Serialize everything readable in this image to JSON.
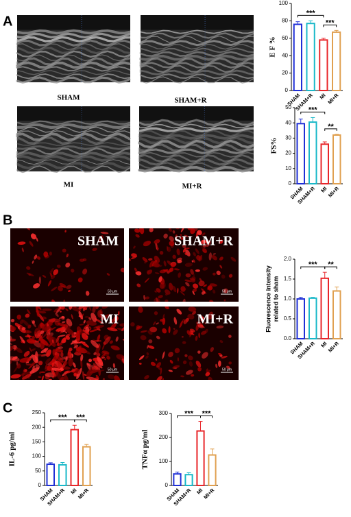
{
  "panel_labels": [
    "A",
    "B",
    "C"
  ],
  "panel_a": {
    "images": [
      {
        "label": "SHAM"
      },
      {
        "label": "SHAM+R"
      },
      {
        "label": "MI"
      },
      {
        "label": "MI+R"
      }
    ]
  },
  "panel_b": {
    "images": [
      {
        "label": "SHAM",
        "scale_bar": "50 μm"
      },
      {
        "label": "SHAM+R",
        "scale_bar": "50 μm"
      },
      {
        "label": "MI",
        "scale_bar": "50 μm"
      },
      {
        "label": "MI+R",
        "scale_bar": "50 μm"
      }
    ]
  },
  "chart_data": [
    {
      "type": "bar",
      "ylabel": [
        "E F %"
      ],
      "categories": [
        "SHAM",
        "SHAM+R",
        "MI",
        "MI+R"
      ],
      "colors": [
        "#1f2fd6",
        "#19b8c8",
        "#e8262a",
        "#e0a050"
      ],
      "values": [
        76,
        77,
        58,
        67
      ],
      "errors": [
        3,
        3,
        2,
        2
      ],
      "ylim": [
        0,
        100
      ],
      "yticks": [
        0,
        20,
        40,
        60,
        80,
        100
      ],
      "annotations": [
        {
          "label": "***",
          "between": [
            "SHAM",
            "MI"
          ]
        },
        {
          "label": "***",
          "between": [
            "MI",
            "MI+R"
          ]
        }
      ]
    },
    {
      "type": "bar",
      "ylabel": [
        "FS%"
      ],
      "categories": [
        "SHAM",
        "SHAM+R",
        "MI",
        "MI+R"
      ],
      "colors": [
        "#1f2fd6",
        "#19b8c8",
        "#e8262a",
        "#e0a050"
      ],
      "values": [
        39.5,
        40.5,
        26,
        32
      ],
      "errors": [
        3,
        3,
        1.5,
        0.5
      ],
      "ylim": [
        0,
        50
      ],
      "yticks": [
        0,
        10,
        20,
        30,
        40,
        50
      ],
      "annotations": [
        {
          "label": "***",
          "between": [
            "SHAM",
            "MI"
          ]
        },
        {
          "label": "**",
          "between": [
            "MI",
            "MI+R"
          ]
        }
      ]
    },
    {
      "type": "bar",
      "ylabel": [
        "Fluorescence intensity",
        "related to sham"
      ],
      "categories": [
        "SHAM",
        "SHAM+R",
        "MI",
        "MI+R"
      ],
      "colors": [
        "#1f2fd6",
        "#19b8c8",
        "#e8262a",
        "#e0a050"
      ],
      "values": [
        1.0,
        1.02,
        1.52,
        1.2
      ],
      "errors": [
        0.04,
        0.02,
        0.15,
        0.1
      ],
      "ylim": [
        0,
        2
      ],
      "yticks": [
        {
          "value": 0,
          "label": "0.0"
        },
        0.5,
        {
          "value": 1,
          "label": "1.0"
        },
        1.5,
        {
          "value": 2,
          "label": "2.0"
        }
      ],
      "annotations": [
        {
          "label": "***",
          "between": [
            "SHAM",
            "MI"
          ]
        },
        {
          "label": "**",
          "between": [
            "MI",
            "MI+R"
          ]
        }
      ]
    },
    {
      "type": "bar",
      "ylabel": [
        "IL-6 pg/ml"
      ],
      "categories": [
        "SHAM",
        "SHAM+R",
        "MI",
        "MI+R"
      ],
      "colors": [
        "#1f2fd6",
        "#19b8c8",
        "#e8262a",
        "#e0a050"
      ],
      "values": [
        73,
        71,
        192,
        133
      ],
      "errors": [
        5,
        8,
        15,
        8
      ],
      "ylim": [
        0,
        250
      ],
      "yticks": [
        0,
        50,
        100,
        150,
        200,
        250
      ],
      "annotations": [
        {
          "label": "***",
          "between": [
            "SHAM",
            "MI"
          ]
        },
        {
          "label": "***",
          "between": [
            "MI",
            "MI+R"
          ]
        }
      ]
    },
    {
      "type": "bar",
      "ylabel": [
        "TNFα pg/ml"
      ],
      "categories": [
        "SHAM",
        "SHAM+R",
        "MI",
        "MI+R"
      ],
      "colors": [
        "#1f2fd6",
        "#19b8c8",
        "#e8262a",
        "#e0a050"
      ],
      "values": [
        48,
        45,
        227,
        127
      ],
      "errors": [
        8,
        8,
        40,
        25
      ],
      "ylim": [
        0,
        300
      ],
      "yticks": [
        0,
        100,
        200,
        300
      ],
      "annotations": [
        {
          "label": "***",
          "between": [
            "SHAM",
            "MI"
          ]
        },
        {
          "label": "***",
          "between": [
            "MI",
            "MI+R"
          ]
        }
      ]
    }
  ]
}
